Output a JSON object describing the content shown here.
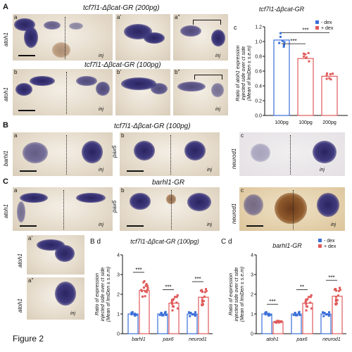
{
  "figure_label": "Figure 2",
  "section_a": {
    "letter": "A",
    "title_200": "tcf7l1-Δβcat-GR (200pg)",
    "title_100": "tcf7l1-Δβcat-GR (100pg)",
    "marker": "atoh1",
    "inj": "inj",
    "sub_a": "a",
    "sub_a1": "a'",
    "sub_a2": "a''",
    "sub_b": "b",
    "sub_b1": "b'",
    "sub_b2": "b''"
  },
  "section_b": {
    "letter": "B",
    "title": "tcf7l1-Δβcat-GR (100pg)",
    "marker_a": "barhl1",
    "marker_b": "pax6",
    "marker_c": "neurod1",
    "sub_a": "a",
    "sub_b": "b",
    "sub_c": "c",
    "inj": "inj"
  },
  "section_c": {
    "letter": "C",
    "title": "barhl1-GR",
    "marker_a": "atoh1",
    "marker_b": "pax6",
    "marker_c": "neurod1",
    "sub_a": "a",
    "sub_b": "b",
    "sub_c": "c",
    "sub_a1": "a'",
    "sub_a2": "a''",
    "inj": "inj"
  },
  "chart_data": [
    {
      "id": "Ac",
      "panel_letter": "c",
      "type": "bar",
      "title": "tcf7l1-Δβcat-GR",
      "ylabel": "Ratio of atoh1 expression injected side over ct side (Mean of lmiDen ± s.e.m)",
      "categories": [
        "100pg",
        "100pg",
        "200pg"
      ],
      "ylim": [
        0,
        1.2
      ],
      "yticks": [
        "0.0",
        "0.2",
        "0.4",
        "0.6",
        "0.8",
        "1.0",
        "1.2"
      ],
      "legend": [
        "- dex",
        "+ dex"
      ],
      "legend_colors": [
        "#3a6fd8",
        "#e05a5a"
      ],
      "values": [
        1.02,
        0.77,
        0.53
      ],
      "bar_colors": [
        "#3a6fd8",
        "#e05a5a",
        "#e05a5a"
      ],
      "significance": [
        {
          "label": "***",
          "from": 0,
          "to": 1,
          "level": 0.97
        },
        {
          "label": "***",
          "from": 0,
          "to": 2,
          "level": 1.12
        }
      ]
    },
    {
      "id": "Bd",
      "panel_letter": "B d",
      "type": "bar",
      "title": "tcf7l1-Δβcat-GR (100pg)",
      "ylabel": "Ratio of expression injected side over ct side (Mean of lmiDen ± s.e.m)",
      "categories": [
        "barhl1",
        "pax6",
        "neurod1"
      ],
      "ylim": [
        0,
        4
      ],
      "yticks": [
        "0",
        "1",
        "2",
        "3",
        "4"
      ],
      "series": [
        {
          "name": "- dex",
          "values": [
            1.0,
            1.0,
            1.0
          ]
        },
        {
          "name": "+ dex",
          "values": [
            2.2,
            1.55,
            1.85
          ]
        }
      ],
      "series_colors": [
        "#3a6fd8",
        "#e05a5a"
      ],
      "significance": [
        "***",
        "***",
        "***"
      ]
    },
    {
      "id": "Cd",
      "panel_letter": "C d",
      "type": "bar",
      "title": "barhl1-GR",
      "ylabel": "Ratio of expression injected side over ct side (Mean of lmiDen ± s.e.m)",
      "categories": [
        "atoh1",
        "pax6",
        "neurod1"
      ],
      "ylim": [
        0,
        4
      ],
      "yticks": [
        "0",
        "1",
        "2",
        "3",
        "4"
      ],
      "legend": [
        "- dex",
        "+ dex"
      ],
      "series": [
        {
          "name": "- dex",
          "values": [
            1.0,
            1.0,
            1.0
          ]
        },
        {
          "name": "+ dex",
          "values": [
            0.6,
            1.55,
            1.9
          ]
        }
      ],
      "series_colors": [
        "#3a6fd8",
        "#e05a5a"
      ],
      "significance": [
        "***",
        "**",
        "***"
      ]
    }
  ]
}
